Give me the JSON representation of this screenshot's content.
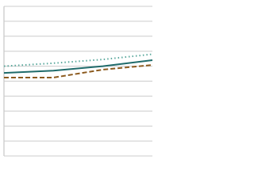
{
  "chart_data": {
    "type": "line",
    "categories": [
      null,
      null,
      null,
      null
    ],
    "series": [
      {
        "color": "#5aa89c",
        "dash": "dotted",
        "values": [
          60,
          62,
          64.5,
          68
        ]
      },
      {
        "color": "#1f6b6b",
        "dash": "solid",
        "values": [
          55.5,
          57,
          60,
          64
        ]
      },
      {
        "color": "#8b5a1e",
        "dash": "dashed",
        "values": [
          52.4,
          52.4,
          57.7,
          60.8
        ]
      }
    ],
    "ylim": [
      0,
      100
    ],
    "yticks": [
      0,
      10,
      20,
      30,
      40,
      50,
      60,
      70,
      80,
      90,
      100
    ],
    "grid": true
  }
}
